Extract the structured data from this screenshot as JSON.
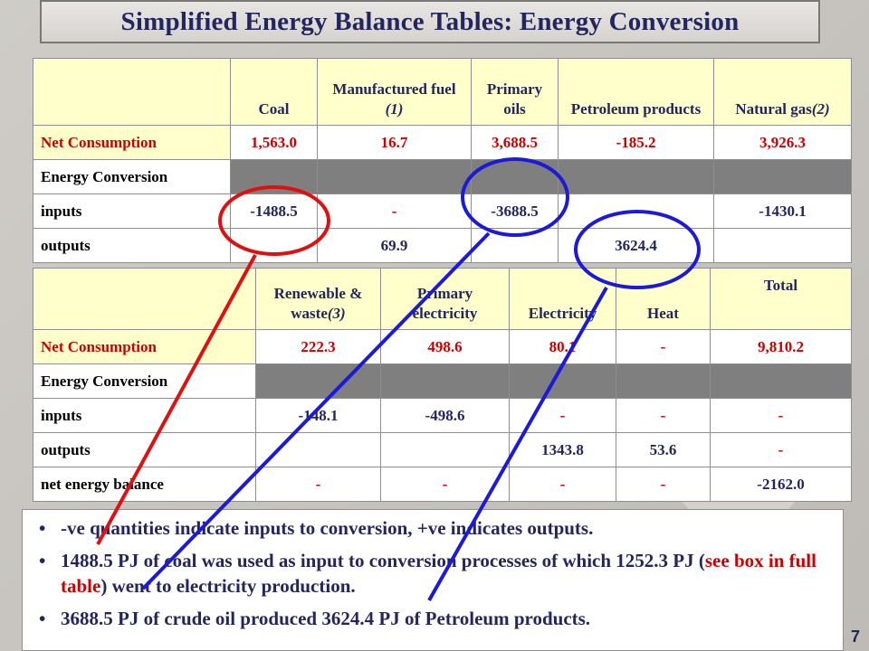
{
  "title": "Simplified Energy Balance Tables: Energy Conversion",
  "page_number": "7",
  "table1": {
    "headers": [
      "Coal",
      "Manufactured fuel",
      "(1)",
      "Primary oils",
      "Petroleum products",
      "Natural gas",
      "(2)"
    ],
    "rows": {
      "net_label": "Net Consumption",
      "net": [
        "1,563.0",
        "16.7",
        "3,688.5",
        "-185.2",
        "3,926.3"
      ],
      "conv_label": "Energy Conversion",
      "inputs_label": "inputs",
      "inputs": [
        "-1488.5",
        "-",
        "-3688.5",
        "",
        "-1430.1"
      ],
      "outputs_label": "outputs",
      "outputs": [
        "",
        "69.9",
        "",
        "3624.4",
        ""
      ]
    }
  },
  "table2": {
    "headers": [
      "Renewable & waste",
      "(3)",
      "Primary electricity",
      "Electricity",
      "Heat",
      "Total"
    ],
    "rows": {
      "net_label": "Net Consumption",
      "net": [
        "222.3",
        "498.6",
        "80.1",
        "-",
        "9,810.2"
      ],
      "conv_label": "Energy Conversion",
      "inputs_label": "inputs",
      "inputs": [
        "-148.1",
        "-498.6",
        "-",
        "-",
        "-"
      ],
      "outputs_label": "outputs",
      "outputs": [
        "",
        "",
        "1343.8",
        "53.6",
        "-"
      ],
      "balance_label": "net energy balance",
      "balance": [
        "-",
        "-",
        "-",
        "-",
        "-2162.0"
      ]
    }
  },
  "notes": {
    "bullet": "•",
    "line1": "-ve quantities indicate inputs to conversion, +ve indicates outputs.",
    "line2_a": "1488.5 PJ of coal was used as input to conversion processes of which 1252.3 PJ (",
    "line2_link": "see box in full table",
    "line2_b": ") went to electricity production.",
    "line3": "3688.5 PJ of crude oil produced 3624.4 PJ of Petroleum products."
  },
  "colors": {
    "title": "#23265e",
    "net_consumption": "#cc0000",
    "highlight_red": "#e01010",
    "highlight_blue": "#1a1ad8",
    "header_bg": "#ffffcc",
    "grey_row": "#7f7f7f"
  }
}
